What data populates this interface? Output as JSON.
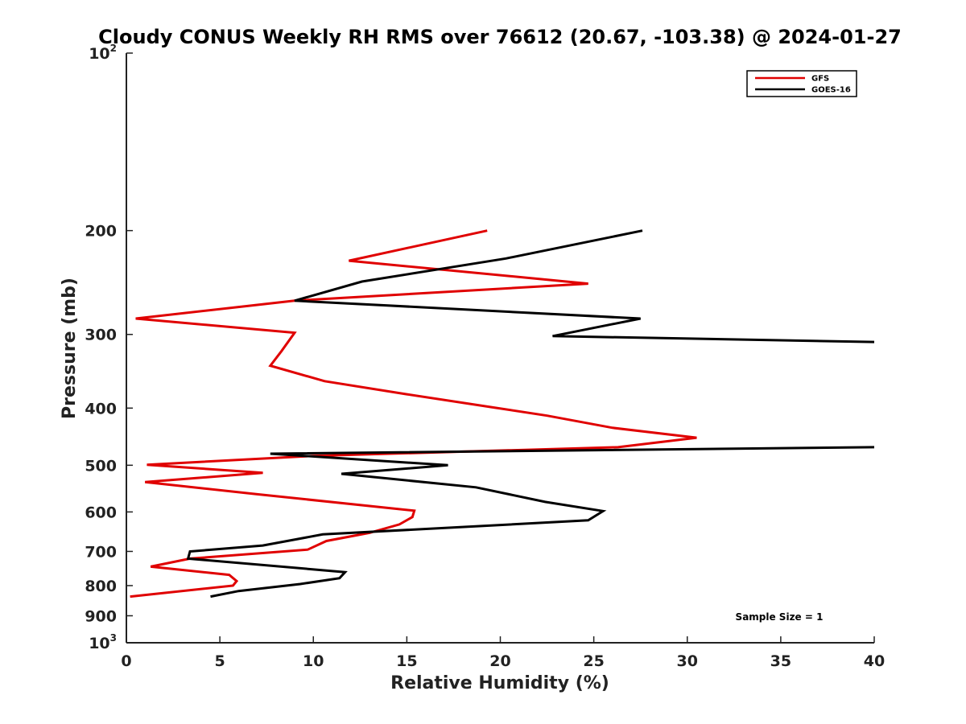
{
  "chart_data": {
    "type": "line",
    "title": "Cloudy CONUS Weekly RH RMS over 76612 (20.67, -103.38) @ 2024-01-27",
    "xlabel": "Relative Humidity (%)",
    "ylabel": "Pressure (mb)",
    "xlim": [
      0,
      40
    ],
    "ylim": [
      100,
      1000
    ],
    "yscale": "log",
    "yreversed": true,
    "x_ticks": [
      0,
      5,
      10,
      15,
      20,
      25,
      30,
      35,
      40
    ],
    "y_ticks": [
      {
        "value": 100,
        "base": "10",
        "exp": "2"
      },
      {
        "value": 200,
        "label": "200"
      },
      {
        "value": 300,
        "label": "300"
      },
      {
        "value": 400,
        "label": "400"
      },
      {
        "value": 500,
        "label": "500"
      },
      {
        "value": 600,
        "label": "600"
      },
      {
        "value": 700,
        "label": "700"
      },
      {
        "value": 800,
        "label": "800"
      },
      {
        "value": 900,
        "label": "900"
      },
      {
        "value": 1000,
        "base": "10",
        "exp": "3"
      }
    ],
    "series": [
      {
        "name": "GFS",
        "color": "#e00000",
        "points": [
          [
            19.3,
            200
          ],
          [
            11.9,
            225
          ],
          [
            24.7,
            246
          ],
          [
            9.0,
            263
          ],
          [
            0.5,
            282
          ],
          [
            9.0,
            298
          ],
          [
            8.3,
            320
          ],
          [
            7.7,
            339
          ],
          [
            10.6,
            360
          ],
          [
            15.0,
            379
          ],
          [
            22.5,
            412
          ],
          [
            26.0,
            432
          ],
          [
            30.5,
            449
          ],
          [
            26.3,
            466
          ],
          [
            10.0,
            482
          ],
          [
            1.1,
            499
          ],
          [
            7.3,
            515
          ],
          [
            1.0,
            534
          ],
          [
            7.0,
            560
          ],
          [
            15.4,
            597
          ],
          [
            15.3,
            612
          ],
          [
            14.6,
            630
          ],
          [
            13.0,
            651
          ],
          [
            10.7,
            672
          ],
          [
            9.7,
            695
          ],
          [
            3.4,
            720
          ],
          [
            1.3,
            743
          ],
          [
            5.5,
            767
          ],
          [
            5.9,
            786
          ],
          [
            5.7,
            800
          ],
          [
            0.2,
            835
          ]
        ]
      },
      {
        "name": "GOES-16",
        "color": "#000000",
        "points": [
          [
            27.6,
            200
          ],
          [
            20.3,
            223
          ],
          [
            12.6,
            244
          ],
          [
            9.0,
            263
          ],
          [
            27.5,
            282
          ],
          [
            22.8,
            302
          ],
          [
            40,
            309
          ],
          null,
          [
            40,
            466
          ],
          [
            7.7,
            478
          ],
          [
            17.2,
            500
          ],
          [
            11.5,
            517
          ],
          [
            18.7,
            545
          ],
          [
            22.4,
            577
          ],
          [
            25.5,
            598
          ],
          [
            24.7,
            620
          ],
          [
            10.5,
            655
          ],
          [
            7.3,
            684
          ],
          [
            3.4,
            700
          ],
          [
            3.3,
            720
          ],
          [
            11.7,
            759
          ],
          [
            11.4,
            777
          ],
          [
            9.3,
            795
          ],
          [
            6.0,
            817
          ],
          [
            4.5,
            835
          ]
        ]
      }
    ],
    "legend": {
      "position": "top-right",
      "entries": [
        "GFS",
        "GOES-16"
      ]
    },
    "annotation": "Sample Size = 1"
  }
}
